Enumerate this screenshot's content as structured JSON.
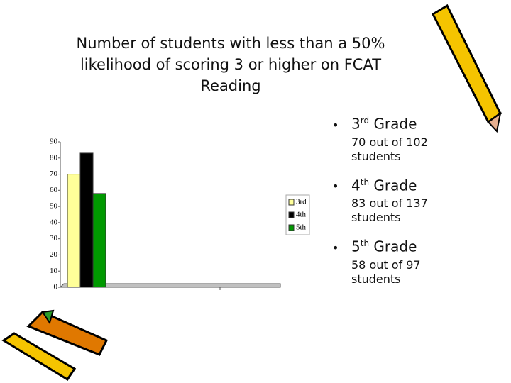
{
  "chart_data": {
    "type": "bar",
    "title": "Number of students with less than a 50% likelihood of scoring 3 or higher on FCAT Reading",
    "categories": [
      null
    ],
    "series": [
      {
        "name": "3rd",
        "color": "#ffff99",
        "values": [
          70
        ]
      },
      {
        "name": "4th",
        "color": "#000000",
        "values": [
          83
        ]
      },
      {
        "name": "5th",
        "color": "#009900",
        "values": [
          58
        ]
      }
    ],
    "ylim": [
      0,
      90
    ],
    "yticks": [
      0,
      10,
      20,
      30,
      40,
      50,
      60,
      70,
      80,
      90
    ],
    "legend": "right"
  },
  "bullets": [
    {
      "ordinal": "3",
      "suffix": "rd",
      "label": "Grade",
      "detail": "70 out of 102 students"
    },
    {
      "ordinal": "4",
      "suffix": "th",
      "label": "Grade",
      "detail": "83 out of 137 students"
    },
    {
      "ordinal": "5",
      "suffix": "th",
      "label": "Grade",
      "detail": "58 out of 97 students"
    }
  ]
}
